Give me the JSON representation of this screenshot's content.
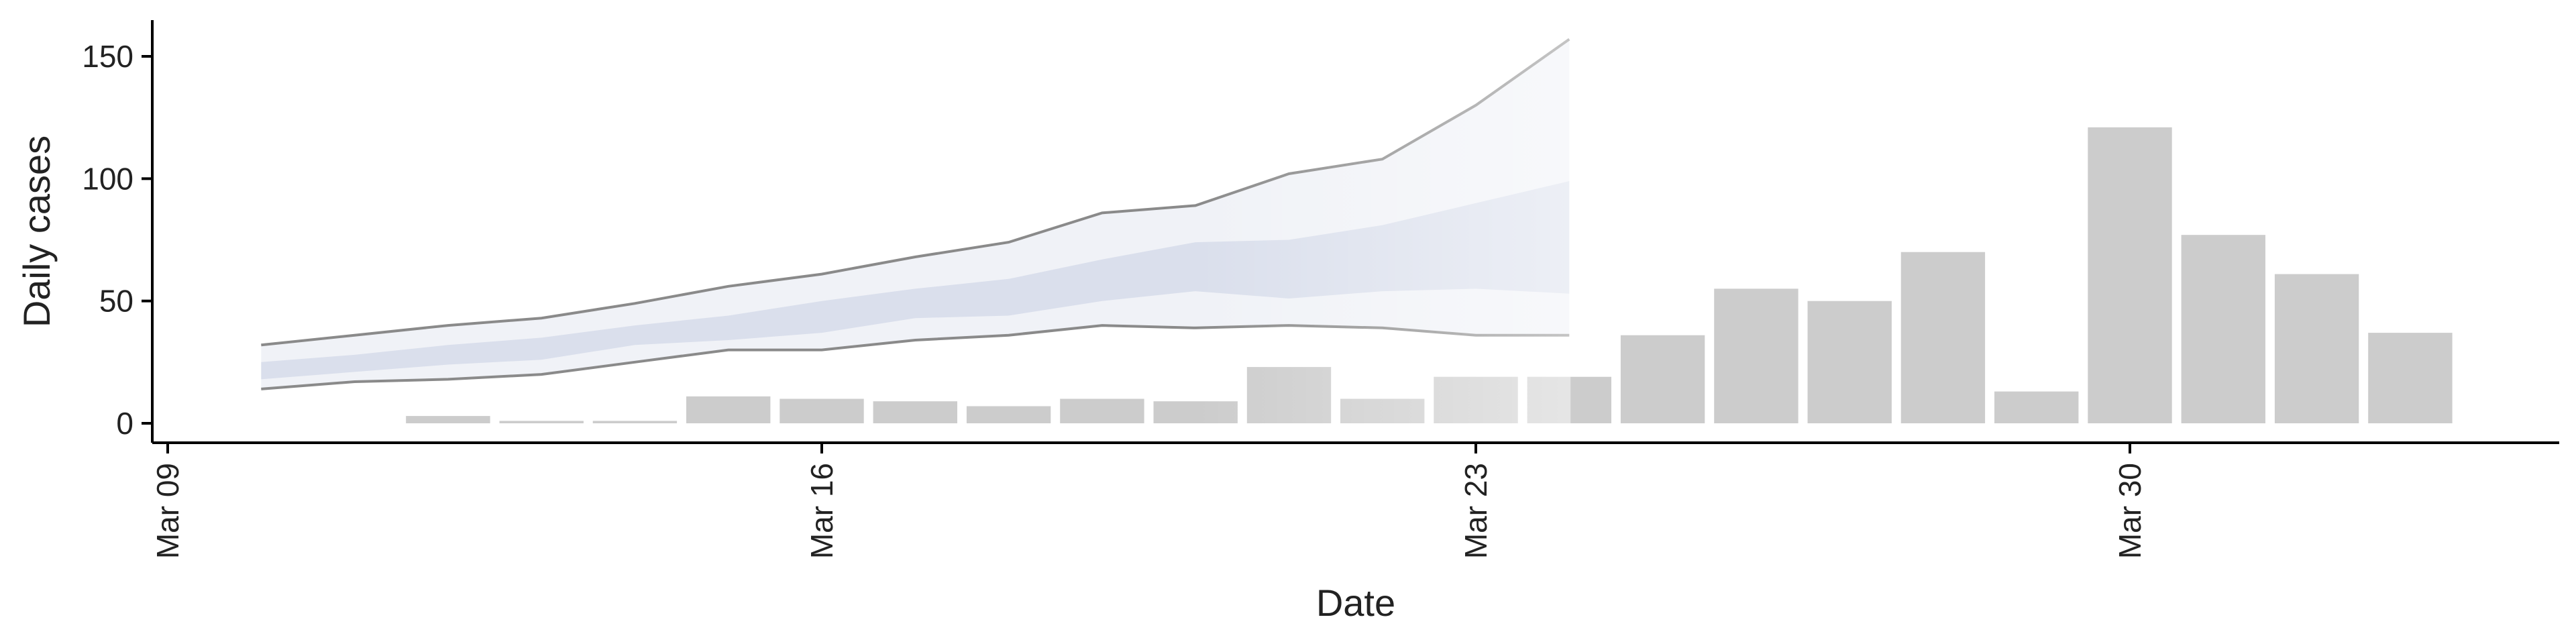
{
  "chart_data": {
    "type": "bar",
    "xlabel": "Date",
    "ylabel": "Daily cases",
    "x_ticks": [
      {
        "date": "2020-03-09",
        "label": "Mar 09"
      },
      {
        "date": "2020-03-16",
        "label": "Mar 16"
      },
      {
        "date": "2020-03-23",
        "label": "Mar 23"
      },
      {
        "date": "2020-03-30",
        "label": "Mar 30"
      }
    ],
    "y_ticks": [
      0,
      50,
      100,
      150
    ],
    "xlim": [
      "2020-03-09",
      "2020-04-04"
    ],
    "ylim": [
      -7,
      165
    ],
    "grid": false,
    "bar_color": "#cccccc",
    "band_color": "#c9cfe3",
    "line_color": "#8a8a8a",
    "observed": {
      "dates": [
        "2020-03-12",
        "2020-03-13",
        "2020-03-14",
        "2020-03-15",
        "2020-03-16",
        "2020-03-17",
        "2020-03-18",
        "2020-03-19",
        "2020-03-20",
        "2020-03-21",
        "2020-03-22",
        "2020-03-23",
        "2020-03-24",
        "2020-03-25",
        "2020-03-26",
        "2020-03-27",
        "2020-03-28",
        "2020-03-29",
        "2020-03-30",
        "2020-03-31",
        "2020-04-01",
        "2020-04-02"
      ],
      "values": [
        3,
        1,
        1,
        11,
        10,
        9,
        7,
        10,
        9,
        23,
        10,
        19,
        19,
        36,
        55,
        50,
        70,
        13,
        121,
        77,
        61,
        37
      ]
    },
    "forecast": {
      "dates": [
        "2020-03-10",
        "2020-03-11",
        "2020-03-12",
        "2020-03-13",
        "2020-03-14",
        "2020-03-15",
        "2020-03-16",
        "2020-03-17",
        "2020-03-18",
        "2020-03-19",
        "2020-03-20",
        "2020-03-21",
        "2020-03-22",
        "2020-03-23",
        "2020-03-24"
      ],
      "upper_90": [
        32,
        36,
        40,
        43,
        49,
        56,
        61,
        68,
        74,
        86,
        89,
        102,
        108,
        130,
        157
      ],
      "upper_50": [
        25,
        28,
        32,
        35,
        40,
        44,
        50,
        55,
        59,
        67,
        74,
        75,
        81,
        90,
        99
      ],
      "lower_50": [
        18,
        21,
        24,
        26,
        32,
        34,
        37,
        43,
        44,
        50,
        54,
        51,
        54,
        55,
        53
      ],
      "lower_90": [
        14,
        17,
        18,
        20,
        25,
        30,
        30,
        34,
        36,
        40,
        39,
        40,
        39,
        36,
        36
      ]
    }
  }
}
